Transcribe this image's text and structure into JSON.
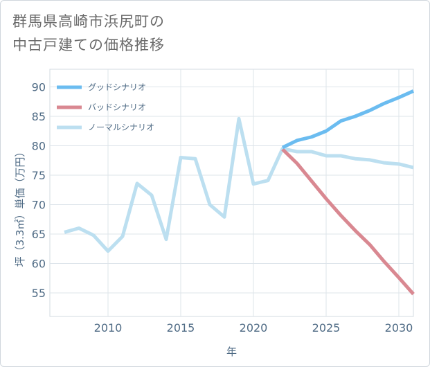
{
  "page_title": {
    "line1": "群馬県高崎市浜尻町の",
    "line2": "中古戸建ての価格推移"
  },
  "chart_data": {
    "type": "line",
    "title": "群馬県高崎市浜尻町の中古戸建ての価格推移",
    "xlabel": "年",
    "ylabel": "坪（3.3㎡）単価（万円）",
    "xlim": [
      2006,
      2031
    ],
    "ylim": [
      51,
      93
    ],
    "x_ticks": [
      2010,
      2015,
      2020,
      2025,
      2030
    ],
    "y_ticks": [
      55,
      60,
      65,
      70,
      75,
      80,
      85,
      90
    ],
    "grid": true,
    "legend_position": "top-left",
    "series": [
      {
        "name": "グッドシナリオ",
        "color": "#6bbcf0",
        "x": [
          2022,
          2023,
          2024,
          2025,
          2026,
          2027,
          2028,
          2029,
          2030,
          2031
        ],
        "values": [
          79.7,
          80.9,
          81.5,
          82.5,
          84.2,
          85.0,
          86.0,
          87.2,
          88.2,
          89.3
        ]
      },
      {
        "name": "バッドシナリオ",
        "color": "#d98891",
        "x": [
          2022,
          2023,
          2024,
          2025,
          2026,
          2027,
          2028,
          2029,
          2030,
          2031
        ],
        "values": [
          79.4,
          77.0,
          74.0,
          71.0,
          68.2,
          65.6,
          63.2,
          60.3,
          57.6,
          54.8
        ]
      },
      {
        "name": "ノーマルシナリオ",
        "color": "#bcdff0",
        "x": [
          2007,
          2008,
          2009,
          2010,
          2011,
          2012,
          2013,
          2014,
          2015,
          2016,
          2017,
          2018,
          2019,
          2020,
          2021,
          2022,
          2023,
          2024,
          2025,
          2026,
          2027,
          2028,
          2029,
          2030,
          2031
        ],
        "values": [
          65.3,
          66.0,
          64.8,
          62.1,
          64.6,
          73.6,
          71.6,
          64.1,
          78.0,
          77.8,
          70.0,
          67.9,
          84.6,
          73.5,
          74.1,
          79.5,
          79.0,
          79.0,
          78.3,
          78.3,
          77.8,
          77.6,
          77.1,
          76.9,
          76.3
        ]
      }
    ]
  }
}
